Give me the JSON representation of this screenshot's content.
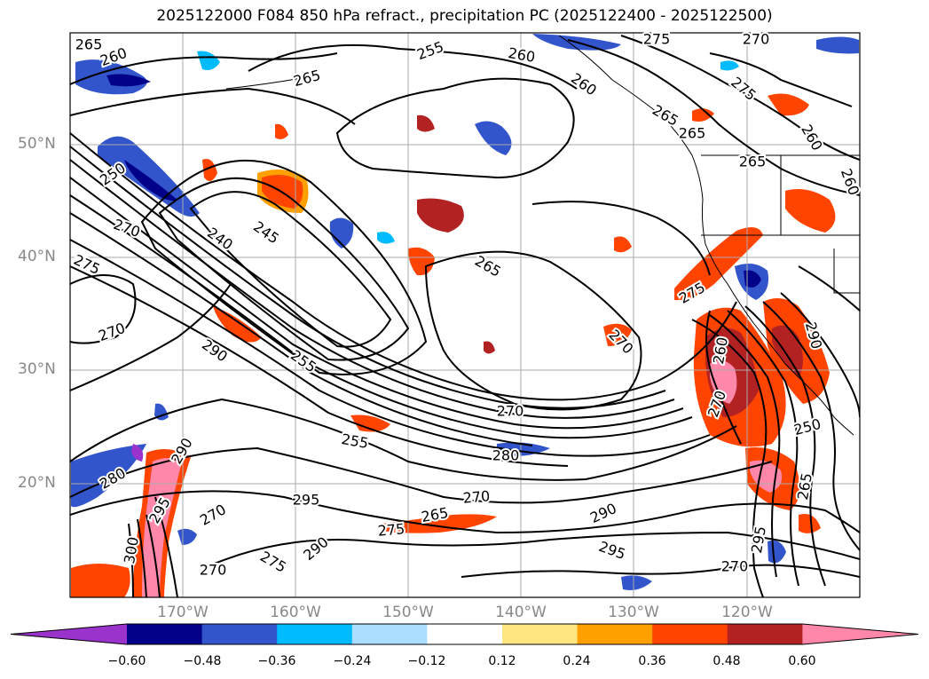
{
  "title": "2025122000 F084 850 hPa refract., precipitation PC (2025122400 - 2025122500)",
  "axes": {
    "lat_labels": [
      "50°N",
      "40°N",
      "30°N",
      "20°N"
    ],
    "lon_labels": [
      "170°W",
      "160°W",
      "150°W",
      "140°W",
      "130°W",
      "120°W"
    ]
  },
  "colorbar": {
    "ticks": [
      "−0.60",
      "−0.48",
      "−0.36",
      "−0.24",
      "−0.12",
      "0.12",
      "0.24",
      "0.36",
      "0.48",
      "0.60"
    ],
    "colors": [
      "#9933cc",
      "#000088",
      "#3355cc",
      "#00bbff",
      "#aaddff",
      "#ffffff",
      "#ffe680",
      "#ffa000",
      "#ff4400",
      "#b22222",
      "#ff88aa"
    ]
  },
  "contour_labels": [
    "265",
    "260",
    "255",
    "265",
    "260",
    "275",
    "270",
    "275",
    "265",
    "265",
    "260",
    "265",
    "250",
    "270",
    "240",
    "245",
    "275",
    "265",
    "260",
    "270",
    "290",
    "255",
    "270",
    "270",
    "275",
    "260",
    "290",
    "270",
    "250",
    "255",
    "280",
    "295",
    "270",
    "265",
    "275",
    "290",
    "295",
    "270",
    "280",
    "300",
    "295",
    "290",
    "275",
    "270",
    "265",
    "295",
    "270",
    "290",
    "260"
  ],
  "colors": {
    "grid": "#aaaaaa",
    "contour": "#000000",
    "coast": "#000000"
  }
}
